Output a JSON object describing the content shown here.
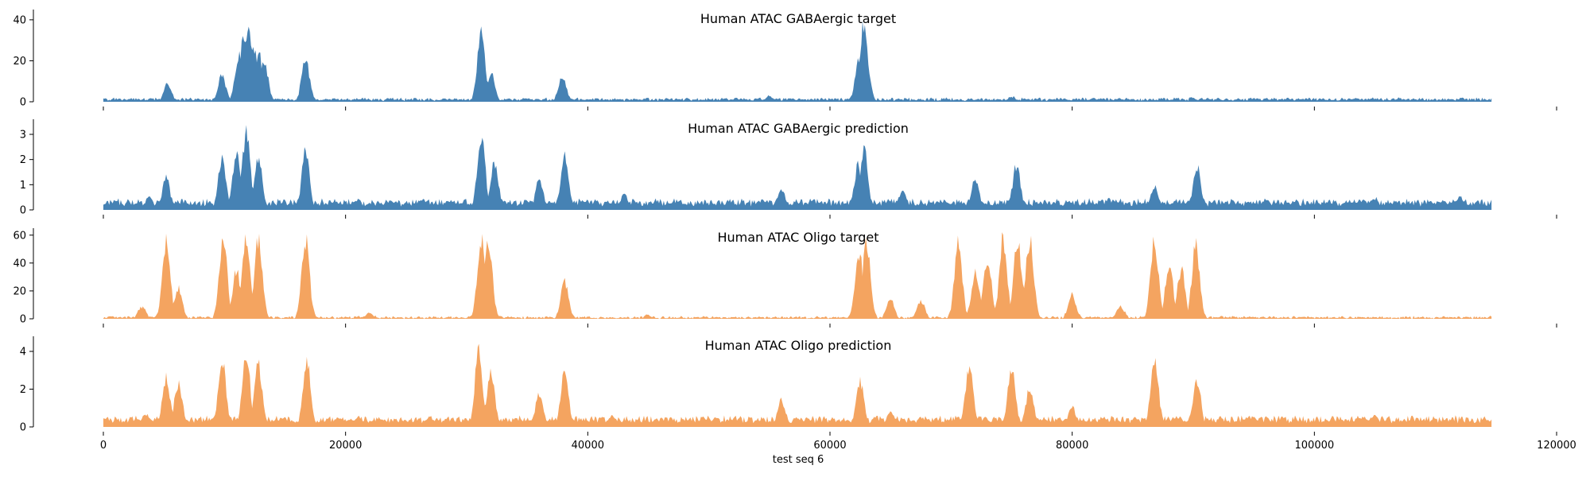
{
  "chart_data": {
    "type": "area",
    "xlabel": "test seq 6",
    "xlim": [
      0,
      120000
    ],
    "x_ticks": [
      0,
      20000,
      40000,
      60000,
      80000,
      100000,
      120000
    ],
    "x_tick_labels": [
      "0",
      "20000",
      "40000",
      "60000",
      "80000",
      "100000",
      "120000"
    ],
    "data_x_range": [
      0,
      114688
    ],
    "grid": false,
    "legend": "none",
    "panels": [
      {
        "title": "Human ATAC GABAergic target",
        "color": "#4682b4",
        "ylim": [
          0,
          45
        ],
        "yticks": [
          0,
          20,
          40
        ],
        "baseline": 1.2,
        "noise": 1.0,
        "x": [
          0,
          5300,
          9800,
          11200,
          11600,
          12000,
          12400,
          12800,
          13300,
          16700,
          31200,
          32000,
          37900,
          55000,
          62400,
          62800,
          63000,
          75000,
          90000,
          105000,
          114688
        ],
        "y": [
          1.5,
          10,
          14,
          25,
          35,
          43,
          30,
          28,
          22,
          25,
          37,
          16,
          14,
          3,
          25,
          42,
          22,
          3,
          2.5,
          2,
          1.5
        ]
      },
      {
        "title": "Human ATAC GABAergic prediction",
        "color": "#4682b4",
        "ylim": [
          0,
          3.6
        ],
        "yticks": [
          0,
          1,
          2,
          3
        ],
        "baseline": 0.3,
        "noise": 0.1,
        "x": [
          0,
          3800,
          5200,
          9800,
          11000,
          11800,
          12800,
          16700,
          21000,
          31200,
          32300,
          36000,
          38100,
          43000,
          50000,
          56000,
          62300,
          62800,
          66000,
          72000,
          75400,
          83000,
          86800,
          90300,
          96000,
          105000,
          112000,
          114688
        ],
        "y": [
          0.25,
          0.6,
          1.4,
          2.3,
          2.5,
          3.4,
          2.4,
          2.6,
          0.5,
          3.4,
          2.1,
          1.4,
          2.4,
          0.7,
          0.05,
          0.9,
          2.0,
          2.7,
          0.9,
          1.4,
          2.0,
          0.5,
          1.0,
          1.9,
          0.5,
          0.5,
          0.6,
          0.3
        ]
      },
      {
        "title": "Human ATAC Oligo target",
        "color": "#f4a460",
        "ylim": [
          0,
          65
        ],
        "yticks": [
          0,
          20,
          40,
          60
        ],
        "baseline": 1.0,
        "noise": 1.5,
        "x": [
          0,
          3200,
          5200,
          6200,
          9900,
          11000,
          11800,
          12800,
          16700,
          22000,
          31200,
          31800,
          38100,
          45000,
          62400,
          63000,
          65000,
          67500,
          70600,
          72000,
          73000,
          74300,
          75500,
          76500,
          80000,
          84000,
          86800,
          88000,
          89000,
          90200,
          95000,
          105000,
          114688
        ],
        "y": [
          1,
          10,
          65,
          25,
          65,
          40,
          65,
          65,
          65,
          5,
          65,
          65,
          30,
          3,
          55,
          65,
          15,
          15,
          60,
          40,
          50,
          65,
          65,
          65,
          20,
          10,
          65,
          45,
          40,
          60,
          2,
          1,
          3
        ]
      },
      {
        "title": "Human ATAC Oligo prediction",
        "color": "#f4a460",
        "ylim": [
          0,
          4.8
        ],
        "yticks": [
          0,
          2,
          4
        ],
        "baseline": 0.4,
        "noise": 0.12,
        "x": [
          0,
          3500,
          5200,
          6200,
          9800,
          11800,
          12800,
          16800,
          21000,
          31000,
          32000,
          36000,
          38100,
          42000,
          50000,
          56000,
          62500,
          65000,
          71500,
          75000,
          76500,
          80000,
          86800,
          90300,
          95000,
          105000,
          114688
        ],
        "y": [
          0.4,
          0.8,
          3.0,
          2.7,
          4.0,
          4.4,
          3.7,
          4.0,
          0.6,
          4.6,
          3.4,
          2.0,
          3.3,
          0.7,
          0.5,
          1.6,
          2.8,
          0.9,
          3.7,
          3.5,
          2.4,
          1.2,
          4.3,
          2.8,
          0.6,
          0.7,
          0.4
        ]
      }
    ]
  }
}
